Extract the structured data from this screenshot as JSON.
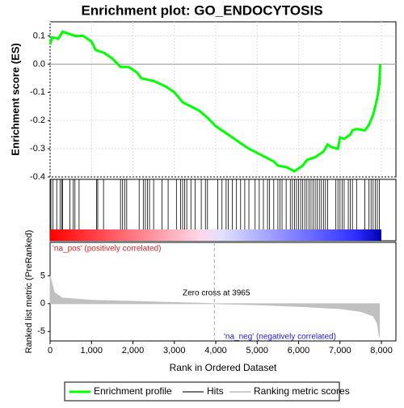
{
  "title": "Enrichment plot: GO_ENDOCYTOSIS",
  "chart_data": [
    {
      "type": "line",
      "ylabel": "Enrichment score (ES)",
      "xlim": [
        0,
        8350
      ],
      "ylim": [
        -0.4,
        0.15
      ],
      "yticks": [
        0.1,
        {
          "value": 0,
          "label": "0.0"
        },
        -0.1,
        -0.2,
        -0.3,
        -0.4
      ],
      "grid": true,
      "series": [
        {
          "name": "Enrichment profile",
          "color": "#00ff00",
          "x": [
            0,
            50,
            200,
            300,
            500,
            600,
            800,
            1000,
            1100,
            1300,
            1500,
            1700,
            1900,
            2100,
            2200,
            2500,
            2800,
            3000,
            3200,
            3400,
            3600,
            3800,
            4000,
            4400,
            4800,
            5200,
            5400,
            5500,
            5700,
            5900,
            6000,
            6100,
            6200,
            6400,
            6600,
            6700,
            6800,
            6950,
            7000,
            7100,
            7250,
            7300,
            7400,
            7600,
            7700,
            7800,
            7850,
            7900,
            7950,
            7970
          ],
          "values": [
            0.07,
            0.095,
            0.09,
            0.115,
            0.105,
            0.1,
            0.1,
            0.08,
            0.05,
            0.04,
            0.02,
            -0.01,
            -0.01,
            -0.03,
            -0.05,
            -0.06,
            -0.08,
            -0.1,
            -0.135,
            -0.15,
            -0.165,
            -0.19,
            -0.22,
            -0.26,
            -0.3,
            -0.33,
            -0.345,
            -0.36,
            -0.365,
            -0.38,
            -0.37,
            -0.36,
            -0.34,
            -0.33,
            -0.31,
            -0.285,
            -0.295,
            -0.3,
            -0.26,
            -0.265,
            -0.25,
            -0.235,
            -0.23,
            -0.235,
            -0.215,
            -0.18,
            -0.15,
            -0.12,
            -0.07,
            0.0
          ]
        }
      ]
    },
    {
      "type": "hits",
      "xlim": [
        0,
        8350
      ],
      "series": [
        {
          "name": "Hits",
          "color": "#000000",
          "x": [
            20,
            70,
            160,
            240,
            280,
            300,
            480,
            560,
            600,
            700,
            1120,
            1150,
            1290,
            1700,
            1750,
            1800,
            1850,
            2150,
            2250,
            2300,
            2350,
            2400,
            2500,
            2700,
            2850,
            3050,
            3150,
            3200,
            3250,
            3300,
            3400,
            3500,
            3650,
            3750,
            3800,
            4050,
            4150,
            4250,
            4300,
            4400,
            4500,
            4600,
            4700,
            4800,
            4950,
            5050,
            5150,
            5250,
            5300,
            5400,
            5500,
            5550,
            5600,
            5700,
            5800,
            5850,
            5900,
            5950,
            6000,
            6050,
            6100,
            6150,
            6200,
            6250,
            6300,
            6350,
            6400,
            6450,
            6500,
            6550,
            6600,
            6650,
            6700,
            6900,
            6950,
            7000,
            7050,
            7100,
            7200,
            7250,
            7300,
            7400,
            7600,
            7700,
            7750,
            7800,
            7850,
            7900,
            7950
          ]
        }
      ],
      "pos_label": "'na_pos' (positively correlated)",
      "neg_label": "'na_neg' (negatively correlated)"
    },
    {
      "type": "area",
      "ylabel": "Ranked list metric (PreRanked)",
      "xlabel": "Rank in Ordered Dataset",
      "xlim": [
        0,
        8350
      ],
      "ylim": [
        -6.7,
        11
      ],
      "xticks": [
        0,
        {
          "value": 1000,
          "label": "1,000"
        },
        {
          "value": 2000,
          "label": "2,000"
        },
        {
          "value": 3000,
          "label": "3,000"
        },
        {
          "value": 4000,
          "label": "4,000"
        },
        {
          "value": 5000,
          "label": "5,000"
        },
        {
          "value": 6000,
          "label": "6,000"
        },
        {
          "value": 7000,
          "label": "7,000"
        },
        {
          "value": 8000,
          "label": "8,000"
        }
      ],
      "yticks": [
        5,
        0,
        -5
      ],
      "zero_cross": 3965,
      "annotation": "Zero cross at 3965",
      "series": [
        {
          "name": "Ranking metric scores",
          "color": "#c0c0c0",
          "x": [
            0,
            100,
            300,
            1000,
            2000,
            3000,
            3965,
            5000,
            6000,
            7000,
            7500,
            7800,
            7900,
            7950
          ],
          "values": [
            5,
            2,
            1,
            0.6,
            0.4,
            0.2,
            0,
            -0.2,
            -0.5,
            -0.9,
            -1.4,
            -2.2,
            -3.5,
            -6
          ]
        }
      ]
    }
  ]
}
